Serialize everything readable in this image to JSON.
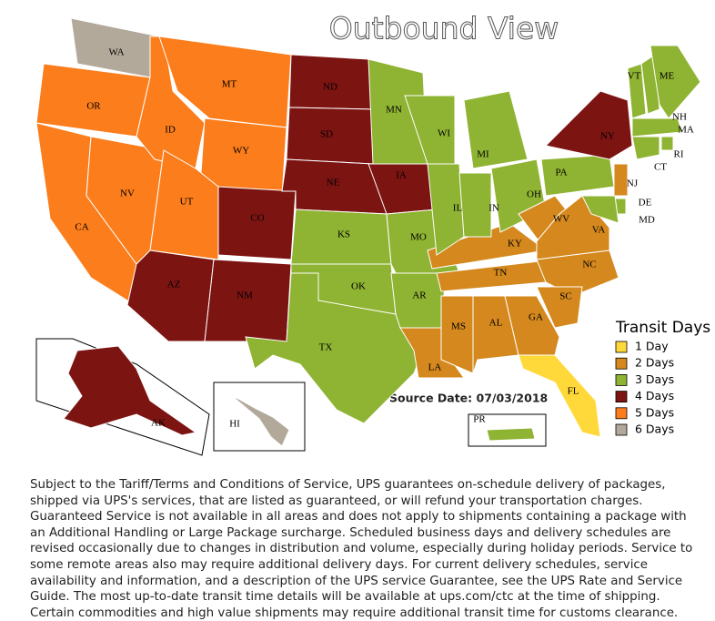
{
  "title": "Outbound View",
  "states": [
    {
      "label": "WA",
      "color": "#b3a99a"
    },
    {
      "label": "OR",
      "color": "#fb7d1c"
    },
    {
      "label": "CA",
      "color": "#fb7d1c"
    },
    {
      "label": "NV",
      "color": "#fb7d1c"
    },
    {
      "label": "ID",
      "color": "#fb7d1c"
    },
    {
      "label": "MT",
      "color": "#fb7d1c"
    },
    {
      "label": "WY",
      "color": "#fb7d1c"
    },
    {
      "label": "UT",
      "color": "#fb7d1c"
    },
    {
      "label": "CO",
      "color": "#7c1412"
    },
    {
      "label": "AZ",
      "color": "#7c1412"
    },
    {
      "label": "NM",
      "color": "#7c1412"
    },
    {
      "label": "ND",
      "color": "#7c1412"
    },
    {
      "label": "SD",
      "color": "#7c1412"
    },
    {
      "label": "NE",
      "color": "#7c1412"
    },
    {
      "label": "KS",
      "color": "#8fb332"
    },
    {
      "label": "OK",
      "color": "#8fb332"
    },
    {
      "label": "TX",
      "color": "#8fb332"
    },
    {
      "label": "IA",
      "color": "#7c1412"
    },
    {
      "label": "MN",
      "color": "#8fb332"
    },
    {
      "label": "WI",
      "color": "#8fb332"
    },
    {
      "label": "MO",
      "color": "#8fb332"
    },
    {
      "label": "AR",
      "color": "#8fb332"
    },
    {
      "label": "LA",
      "color": "#d4881d"
    },
    {
      "label": "MS",
      "color": "#d4881d"
    },
    {
      "label": "AL",
      "color": "#d4881d"
    },
    {
      "label": "GA",
      "color": "#d4881d"
    },
    {
      "label": "FL",
      "color": "#ffd93a"
    },
    {
      "label": "TN",
      "color": "#d4881d"
    },
    {
      "label": "KY",
      "color": "#d4881d"
    },
    {
      "label": "IL",
      "color": "#8fb332"
    },
    {
      "label": "IN",
      "color": "#8fb332"
    },
    {
      "label": "OH",
      "color": "#8fb332"
    },
    {
      "label": "MI",
      "color": "#8fb332"
    },
    {
      "label": "WV",
      "color": "#d4881d"
    },
    {
      "label": "VA",
      "color": "#d4881d"
    },
    {
      "label": "NC",
      "color": "#d4881d"
    },
    {
      "label": "SC",
      "color": "#d4881d"
    },
    {
      "label": "PA",
      "color": "#8fb332"
    },
    {
      "label": "NY",
      "color": "#7c1412"
    },
    {
      "label": "VT",
      "color": "#8fb332"
    },
    {
      "label": "NH",
      "color": "#8fb332"
    },
    {
      "label": "ME",
      "color": "#8fb332"
    },
    {
      "label": "MA",
      "color": "#8fb332"
    },
    {
      "label": "CT",
      "color": "#8fb332"
    },
    {
      "label": "RI",
      "color": "#8fb332"
    },
    {
      "label": "NJ",
      "color": "#d4881d"
    },
    {
      "label": "DE",
      "color": "#8fb332"
    },
    {
      "label": "MD",
      "color": "#8fb332"
    },
    {
      "label": "AK",
      "color": "#7c1412"
    },
    {
      "label": "HI",
      "color": "#b3a99a"
    },
    {
      "label": "PR",
      "color": "#8fb332"
    }
  ],
  "legend": {
    "title": "Transit Days",
    "items": [
      {
        "label": "1 Day",
        "color": "#ffd93a"
      },
      {
        "label": "2 Days",
        "color": "#d4881d"
      },
      {
        "label": "3 Days",
        "color": "#8fb332"
      },
      {
        "label": "4 Days",
        "color": "#7c1412"
      },
      {
        "label": "5 Days",
        "color": "#fb7d1c"
      },
      {
        "label": "6 Days",
        "color": "#b3a99a"
      }
    ]
  },
  "source": "Source Date: 07/03/2018",
  "footnote": "Subject to the Tariff/Terms and Conditions of Service, UPS guarantees on-schedule delivery of packages, shipped via UPS's services, that are listed as guaranteed, or will refund your transportation charges. Guaranteed Service is not available in all areas and does not apply to shipments containing a package with an Additional Handling or Large Package surcharge. Scheduled business days and delivery schedules are revised occasionally due to changes in distribution and volume, especially during holiday periods. Service to some remote areas also may require additional delivery days. For current delivery schedules, service availability and information, and a description of the UPS service Guarantee, see the UPS Rate and Service Guide. The most up-to-date transit time details will be available at ups.com/ctc at the time of shipping. Certain commodities and high value shipments may require additional transit time for customs clearance."
}
